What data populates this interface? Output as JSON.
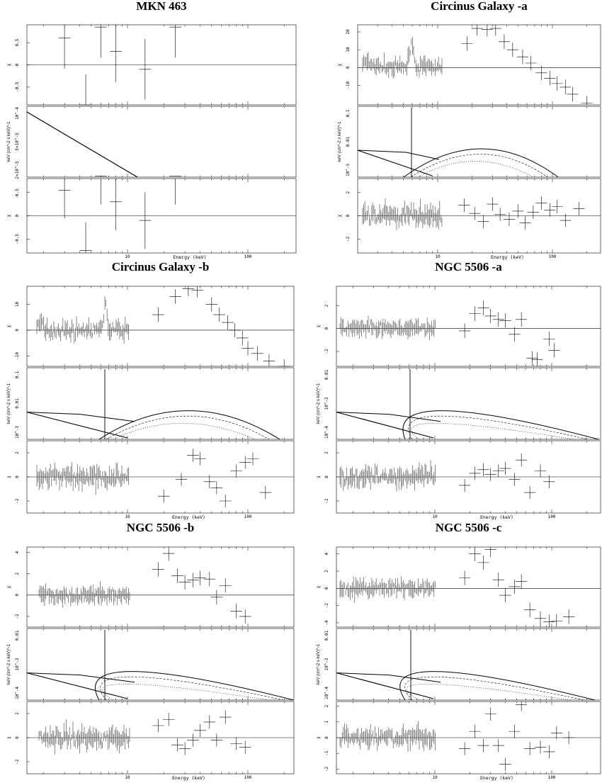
{
  "panels": [
    {
      "title": "MKN 463",
      "x_tick_labels": [
        "10",
        "100"
      ],
      "xlabel": "Energy (keV)",
      "top": {
        "ylabel": "χ",
        "ticks": [
          "0.5",
          "0",
          "-0.5"
        ],
        "ylim": [
          -0.9,
          0.9
        ]
      },
      "model": {
        "ylabel": "keV (cm^-2 s keV)^-1",
        "ticks": [
          "10^-4",
          "5×10^-5",
          "2×10^-5"
        ]
      },
      "bottom": {
        "ylabel": "χ",
        "ticks": [
          "0.5",
          "0",
          "-0.5"
        ],
        "ylim": [
          -0.8,
          0.8
        ]
      }
    },
    {
      "title": "Circinus Galaxy -a",
      "x_tick_labels": [
        "10",
        "100"
      ],
      "xlabel": "Energy (keV)",
      "top": {
        "ylabel": "χ",
        "ticks": [
          "20",
          "10",
          "0",
          "-10"
        ],
        "ylim": [
          -21,
          24
        ]
      },
      "model": {
        "ylabel": "keV (cm^-2 s keV)^-1",
        "ticks": [
          "0.1",
          "0.01",
          "10^-3"
        ]
      },
      "bottom": {
        "ylabel": "χ",
        "ticks": [
          "2",
          "0",
          "-2"
        ],
        "ylim": [
          -3.2,
          3.2
        ]
      }
    },
    {
      "title": "Circinus Galaxy -b",
      "x_tick_labels": [
        "10",
        "100"
      ],
      "xlabel": "Energy (keV)",
      "top": {
        "ylabel": "χ",
        "ticks": [
          "10",
          "0",
          "-10"
        ],
        "ylim": [
          -14,
          17
        ]
      },
      "model": {
        "ylabel": "keV (cm^-2 s keV)^-1",
        "ticks": [
          "0.1",
          "0.01",
          "10^-3"
        ]
      },
      "bottom": {
        "ylabel": "χ",
        "ticks": [
          "2",
          "0",
          "-2"
        ],
        "ylim": [
          -3,
          3
        ]
      }
    },
    {
      "title": "NGC 5506 -a",
      "x_tick_labels": [
        "10",
        "100"
      ],
      "xlabel": "Energy (keV)",
      "top": {
        "ylabel": "χ",
        "ticks": [
          "2",
          "0",
          "-2"
        ],
        "ylim": [
          -3.3,
          3.7
        ]
      },
      "model": {
        "ylabel": "keV (cm^-2 s keV)^-1",
        "ticks": [
          "0.01",
          "10^-3",
          "10^-4"
        ]
      },
      "bottom": {
        "ylabel": "χ",
        "ticks": [
          "2",
          "0",
          "-2"
        ],
        "ylim": [
          -3,
          3
        ]
      }
    },
    {
      "title": "NGC 5506 -b",
      "x_tick_labels": [
        "10",
        "100"
      ],
      "xlabel": "Energy (keV)",
      "top": {
        "ylabel": "χ",
        "ticks": [
          "4",
          "2",
          "0",
          "-2"
        ],
        "ylim": [
          -3,
          4.5
        ]
      },
      "model": {
        "ylabel": "keV (cm^-2 s keV)^-1",
        "ticks": [
          "0.01",
          "10^-3",
          "10^-4"
        ]
      },
      "bottom": {
        "ylabel": "χ",
        "ticks": [
          "2",
          "0",
          "-2"
        ],
        "ylim": [
          -3,
          3
        ]
      }
    },
    {
      "title": "NGC 5506 -c",
      "x_tick_labels": [
        "10",
        "100"
      ],
      "xlabel": "Energy (keV)",
      "top": {
        "ylabel": "χ",
        "ticks": [
          "4",
          "2",
          "0",
          "-2",
          "-4"
        ],
        "ylim": [
          -4.5,
          4.8
        ]
      },
      "model": {
        "ylabel": "keV (cm^-2 s keV)^-1",
        "ticks": [
          "0.01",
          "10^-3",
          "10^-4"
        ]
      },
      "bottom": {
        "ylabel": "χ",
        "ticks": [
          "2",
          "1",
          "0",
          "-1",
          "-2"
        ],
        "ylim": [
          -2.3,
          2.3
        ]
      }
    }
  ],
  "chart_data": [
    {
      "type": "scatter",
      "title": "MKN 463",
      "xlabel": "Energy (keV)",
      "x_scale": "log",
      "xlim": [
        2,
        300
      ],
      "series": [
        {
          "panel": "top",
          "x": [
            3,
            4.5,
            6,
            8,
            14,
            25
          ],
          "y": [
            0.6,
            -0.9,
            0.85,
            0.3,
            -0.1,
            0.85
          ]
        },
        {
          "panel": "bottom",
          "x": [
            3,
            4.5,
            6,
            8,
            14,
            25
          ],
          "y": [
            0.55,
            -0.75,
            0.85,
            0.3,
            -0.1,
            0.85
          ]
        }
      ]
    },
    {
      "type": "scatter",
      "title": "Circinus Galaxy -a",
      "xlabel": "Energy (keV)",
      "x_scale": "log",
      "xlim": [
        2,
        300
      ],
      "series": [
        {
          "panel": "top",
          "x": [
            18,
            22,
            27,
            32,
            38,
            45,
            55,
            65,
            80,
            95,
            110,
            130,
            150,
            200
          ],
          "y": [
            13.5,
            22,
            21.5,
            22,
            14.5,
            10,
            6,
            2.5,
            -3,
            -6,
            -9,
            -11,
            -15,
            -20
          ]
        },
        {
          "panel": "bottom",
          "x": [
            17,
            21,
            25,
            30,
            35,
            42,
            50,
            58,
            68,
            80,
            95,
            110,
            130,
            170
          ],
          "y": [
            0.9,
            0.2,
            -0.5,
            1.0,
            0.1,
            -0.3,
            0.4,
            -0.6,
            0.3,
            1.1,
            0.5,
            0.8,
            -0.4,
            0.6
          ]
        }
      ]
    },
    {
      "type": "scatter",
      "title": "Circinus Galaxy -b",
      "xlabel": "Energy (keV)",
      "x_scale": "log",
      "xlim": [
        2,
        300
      ],
      "series": [
        {
          "panel": "top",
          "x": [
            18,
            25,
            32,
            38,
            50,
            58,
            68,
            78,
            90,
            100,
            120,
            150,
            200
          ],
          "y": [
            6,
            13,
            16,
            15.5,
            10,
            6,
            3,
            0,
            -3,
            -7,
            -9,
            -12,
            -14
          ]
        },
        {
          "panel": "bottom",
          "x": [
            20,
            28,
            35,
            40,
            48,
            55,
            65,
            80,
            95,
            110,
            140
          ],
          "y": [
            -1.6,
            -0.2,
            1.8,
            1.5,
            -0.4,
            -0.9,
            -2.0,
            0.5,
            1.2,
            1.5,
            -1.3
          ]
        }
      ]
    },
    {
      "type": "scatter",
      "title": "NGC 5506 -a",
      "xlabel": "Energy (keV)",
      "x_scale": "log",
      "xlim": [
        2,
        300
      ],
      "series": [
        {
          "panel": "top",
          "x": [
            18,
            22,
            26,
            30,
            35,
            40,
            48,
            55,
            68,
            75,
            95,
            105
          ],
          "y": [
            -0.2,
            1.3,
            1.8,
            1.1,
            0.8,
            0.7,
            -0.5,
            0.8,
            -2.6,
            -2.7,
            -0.9,
            -1.9
          ]
        },
        {
          "panel": "bottom",
          "x": [
            18,
            22,
            26,
            30,
            35,
            40,
            48,
            55,
            65,
            80,
            95
          ],
          "y": [
            -0.7,
            0.3,
            0.6,
            0.2,
            0.5,
            0.7,
            -0.2,
            1.4,
            -1.3,
            0.5,
            -0.4
          ]
        }
      ]
    },
    {
      "type": "scatter",
      "title": "NGC 5506 -b",
      "xlabel": "Energy (keV)",
      "x_scale": "log",
      "xlim": [
        2,
        300
      ],
      "series": [
        {
          "panel": "top",
          "x": [
            18,
            22,
            26,
            30,
            35,
            40,
            48,
            55,
            65,
            80,
            95
          ],
          "y": [
            2.4,
            3.9,
            1.8,
            1.2,
            1.4,
            1.6,
            1.5,
            -0.2,
            0.9,
            -1.5,
            -2.0
          ]
        },
        {
          "panel": "bottom",
          "x": [
            18,
            22,
            26,
            30,
            35,
            40,
            48,
            55,
            65,
            80,
            95
          ],
          "y": [
            1.0,
            1.5,
            -0.6,
            -0.9,
            -0.2,
            0.6,
            1.3,
            -0.2,
            1.7,
            -0.5,
            -0.8
          ]
        }
      ]
    },
    {
      "type": "scatter",
      "title": "NGC 5506 -c",
      "xlabel": "Energy (keV)",
      "x_scale": "log",
      "xlim": [
        2,
        300
      ],
      "series": [
        {
          "panel": "top",
          "x": [
            18,
            22,
            26,
            30,
            35,
            40,
            48,
            55,
            65,
            80,
            95,
            110,
            140
          ],
          "y": [
            1.2,
            4.0,
            3.0,
            4.5,
            1.0,
            -0.8,
            0.2,
            0.8,
            -2.5,
            -3.5,
            -3.9,
            -3.8,
            -3.3
          ]
        },
        {
          "panel": "bottom",
          "x": [
            18,
            22,
            26,
            30,
            35,
            40,
            48,
            55,
            65,
            80,
            95,
            110,
            140
          ],
          "y": [
            -0.7,
            0.4,
            -0.5,
            1.5,
            -0.5,
            -1.7,
            0.4,
            2.1,
            -0.7,
            -0.6,
            -0.9,
            0.3,
            0.0
          ]
        }
      ]
    }
  ]
}
